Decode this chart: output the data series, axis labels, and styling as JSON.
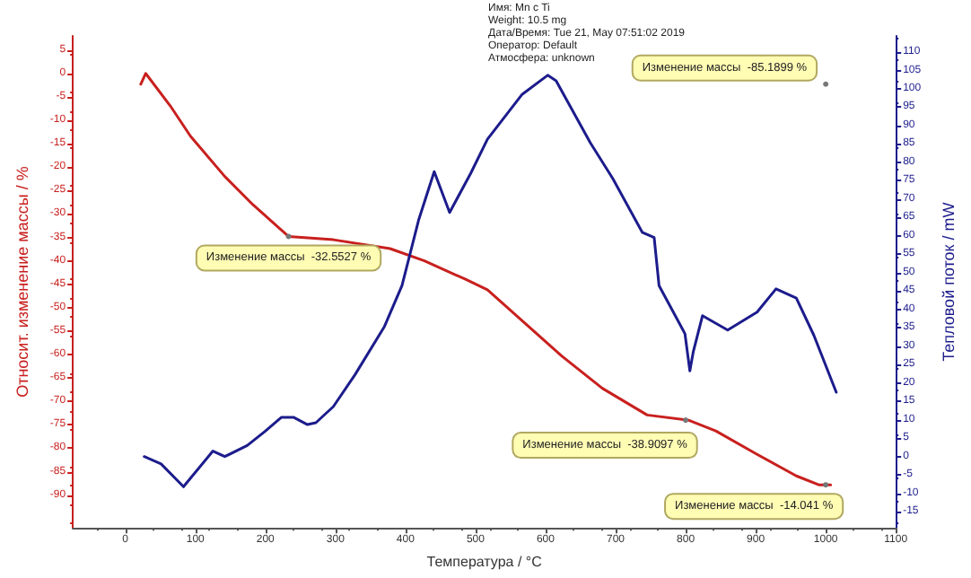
{
  "chart_data": {
    "type": "line",
    "xlabel": "Температура / °С",
    "ylabel": "Относит. изменение массы / %",
    "y2label": "Тепловой поток / mW",
    "xlim": [
      -75,
      1100
    ],
    "xticks": [
      0,
      100,
      200,
      300,
      400,
      500,
      600,
      700,
      800,
      900,
      1000,
      1100
    ],
    "ylim": [
      -97,
      8
    ],
    "yticks": [
      -90,
      -85,
      -80,
      -75,
      -70,
      -65,
      -60,
      -55,
      -50,
      -45,
      -40,
      -35,
      -30,
      -25,
      -20,
      -15,
      -10,
      -5,
      0,
      5
    ],
    "y2lim": [
      -19.4,
      114.4
    ],
    "y2ticks": [
      -15,
      -10,
      -5,
      0,
      5,
      10,
      15,
      20,
      25,
      30,
      35,
      40,
      45,
      50,
      55,
      60,
      65,
      70,
      75,
      80,
      85,
      90,
      95,
      100,
      105,
      110
    ],
    "grid": false,
    "marker": "none",
    "line_style": "solid",
    "series": [
      {
        "color": "#c8201e",
        "x": [
          22,
          29,
          64,
          93,
          142,
          182,
          233,
          297,
          378,
          427,
          485,
          517,
          623,
          681,
          745,
          804,
          843,
          902,
          958,
          990,
          1007
        ],
        "values": [
          -2.3,
          0,
          -6.9,
          -13.4,
          -22,
          -28,
          -34.8,
          -35.5,
          -37.4,
          -40,
          -43.9,
          -46.2,
          -60.3,
          -67.2,
          -72.9,
          -74,
          -76.3,
          -81.3,
          -85.9,
          -87.8,
          -87.8
        ]
      },
      {
        "color": "#1c1c8c",
        "axis": "y2",
        "x": [
          27,
          51,
          83,
          125,
          142,
          174,
          199,
          223,
          240,
          260,
          272,
          297,
          328,
          370,
          395,
          419,
          441,
          463,
          493,
          517,
          566,
          603,
          615,
          664,
          696,
          738,
          755,
          762,
          799,
          806,
          811,
          824,
          860,
          902,
          929,
          958,
          983,
          1015
        ],
        "values": [
          0,
          -2,
          -8.2,
          1.5,
          0,
          3,
          6.8,
          10.7,
          10.7,
          8.7,
          9.2,
          13.6,
          22.3,
          35.4,
          46.5,
          64.5,
          77.5,
          66.4,
          77,
          86.3,
          98.4,
          103.7,
          102.2,
          85.3,
          75.6,
          61,
          59.6,
          46.5,
          33.4,
          23.3,
          28.6,
          38.3,
          34.4,
          39.3,
          45.6,
          43.1,
          33,
          17.5
        ]
      }
    ],
    "annotations": [
      {
        "text": "Изменение массы  -32.5527 %",
        "x": 233,
        "y": -34.8
      },
      {
        "text": "Изменение массы  -85.1899 %",
        "x": 1000,
        "y": -2.3
      },
      {
        "text": "Изменение массы  -38.9097 %",
        "x": 800,
        "y": -74
      },
      {
        "text": "Изменение массы  -14.041 %",
        "x": 1000,
        "y": -87.8
      },
      "Имя: Mn c Ti",
      "Weight: 10.5 mg",
      "Дата/Время: Tue 21, May 07:51:02 2019",
      "Оператор: Default",
      "Атмосфера: unknown"
    ]
  }
}
